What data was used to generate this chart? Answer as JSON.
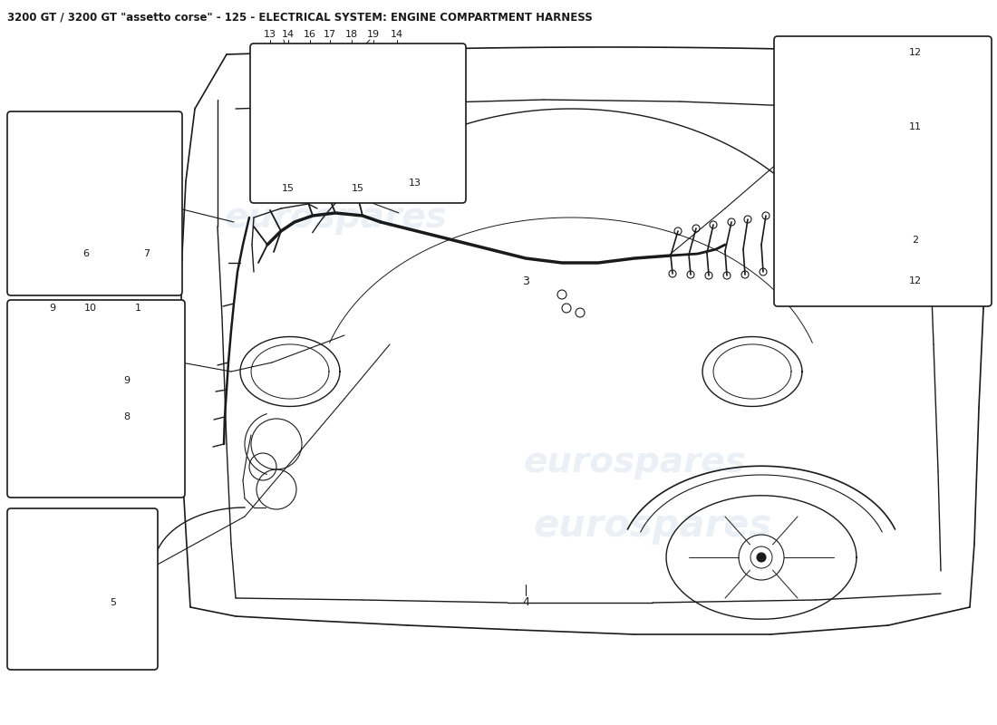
{
  "title": "3200 GT / 3200 GT \"assetto corse\" - 125 - ELECTRICAL SYSTEM: ENGINE COMPARTMENT HARNESS",
  "title_fontsize": 8.5,
  "bg_color": "#ffffff",
  "watermark_text": "eurospares",
  "watermark_color": "#c8d4e8",
  "watermark_alpha": 0.35,
  "line_color": "#1a1a1a",
  "label_fontsize": 8,
  "img_bg": "#f5f5f0",
  "callout_bg": "#ffffff"
}
